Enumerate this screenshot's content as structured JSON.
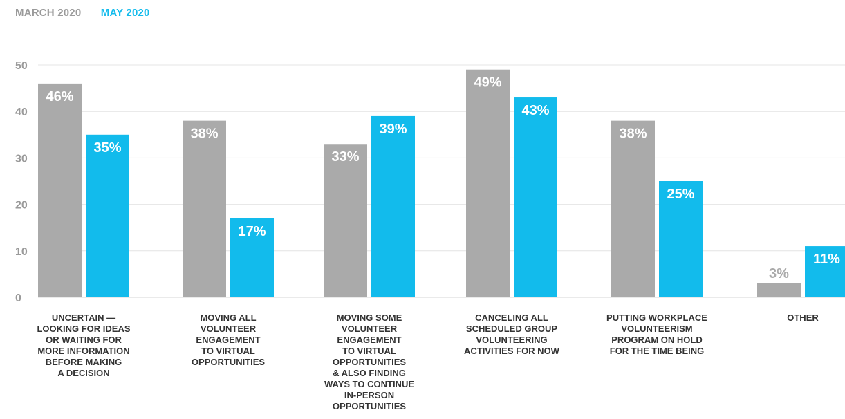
{
  "colors": {
    "march": "#aaaaaa",
    "may": "#12bbec",
    "axis_text": "#9a9a9a",
    "category_text": "#333333",
    "gridline": "#e4e4e4",
    "label_on_bar": "#ffffff"
  },
  "chart_data": {
    "type": "bar",
    "title": "",
    "xlabel": "",
    "ylabel": "",
    "ylim": [
      0,
      50
    ],
    "yticks": [
      0,
      10,
      20,
      30,
      40,
      50
    ],
    "grid": true,
    "legend_position": "top-left",
    "categories": [
      [
        "UNCERTAIN —",
        "LOOKING FOR IDEAS",
        "OR WAITING FOR",
        "MORE INFORMATION",
        "BEFORE MAKING",
        "A DECISION"
      ],
      [
        "MOVING ALL",
        "VOLUNTEER",
        "ENGAGEMENT",
        "TO VIRTUAL",
        "OPPORTUNITIES"
      ],
      [
        "MOVING SOME",
        "VOLUNTEER",
        "ENGAGEMENT",
        "TO VIRTUAL",
        "OPPORTUNITIES",
        "& ALSO FINDING",
        "WAYS TO CONTINUE",
        "IN-PERSON",
        "OPPORTUNITIES"
      ],
      [
        "CANCELING ALL",
        "SCHEDULED GROUP",
        "VOLUNTEERING",
        "ACTIVITIES FOR NOW"
      ],
      [
        "PUTTING WORKPLACE",
        "VOLUNTEERISM",
        "PROGRAM ON HOLD",
        "FOR THE TIME BEING"
      ],
      [
        "OTHER"
      ]
    ],
    "series": [
      {
        "name": "MARCH 2020",
        "color": "#aaaaaa",
        "values": [
          46,
          38,
          33,
          49,
          38,
          3
        ],
        "labels": [
          "46%",
          "38%",
          "33%",
          "49%",
          "38%",
          "3%"
        ]
      },
      {
        "name": "MAY 2020",
        "color": "#12bbec",
        "values": [
          35,
          17,
          39,
          43,
          25,
          11
        ],
        "labels": [
          "35%",
          "17%",
          "39%",
          "43%",
          "25%",
          "11%"
        ]
      }
    ]
  }
}
